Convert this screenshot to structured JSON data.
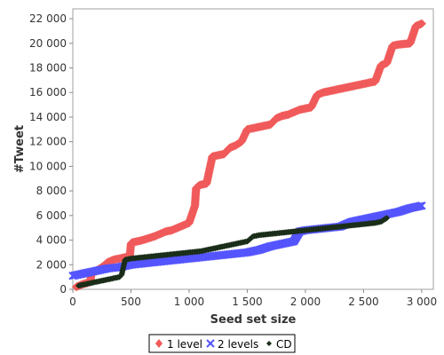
{
  "chart_data": {
    "type": "scatter",
    "xlabel": "Seed set size",
    "ylabel": "#Tweet",
    "xlim": [
      0,
      3100
    ],
    "ylim": [
      0,
      22800
    ],
    "x_ticks": [
      0,
      500,
      1000,
      1500,
      2000,
      2500,
      3000
    ],
    "x_tick_labels": [
      "0",
      "500",
      "1 000",
      "1 500",
      "2 000",
      "2 500",
      "3 000"
    ],
    "y_ticks": [
      0,
      2000,
      4000,
      6000,
      8000,
      10000,
      12000,
      14000,
      16000,
      18000,
      20000,
      22000
    ],
    "y_tick_labels": [
      "0",
      "2 000",
      "4 000",
      "6 000",
      "8 000",
      "10 000",
      "12 000",
      "14 000",
      "16 000",
      "18 000",
      "20 000",
      "22 000"
    ],
    "grid": false,
    "legend_position": "bottom-center",
    "series": [
      {
        "name": "1 level",
        "marker": "diamond",
        "color": "#f05a5a",
        "x": [
          30,
          80,
          150,
          160,
          200,
          250,
          300,
          350,
          400,
          450,
          490,
          500,
          510,
          600,
          700,
          800,
          850,
          900,
          950,
          1000,
          1050,
          1060,
          1080,
          1100,
          1150,
          1200,
          1250,
          1300,
          1350,
          1400,
          1450,
          1500,
          1550,
          1600,
          1650,
          1700,
          1750,
          1800,
          1850,
          1900,
          1950,
          2000,
          2050,
          2100,
          2150,
          2200,
          2250,
          2300,
          2350,
          2400,
          2500,
          2600,
          2650,
          2700,
          2750,
          2800,
          2900,
          2950,
          3000
        ],
        "y": [
          200,
          400,
          600,
          1300,
          1500,
          1800,
          2200,
          2400,
          2500,
          2600,
          2700,
          3700,
          3800,
          4000,
          4300,
          4700,
          4800,
          5000,
          5200,
          5400,
          6800,
          8200,
          8400,
          8500,
          8600,
          10800,
          10900,
          11000,
          11500,
          11700,
          12000,
          13000,
          13100,
          13200,
          13300,
          13400,
          13900,
          14100,
          14200,
          14400,
          14600,
          14700,
          14800,
          15800,
          16000,
          16100,
          16200,
          16300,
          16400,
          16500,
          16700,
          16900,
          18200,
          18400,
          19800,
          19900,
          20000,
          21400,
          21600
        ]
      },
      {
        "name": "2 levels",
        "marker": "x",
        "color": "#5555ff",
        "x": [
          0,
          100,
          200,
          300,
          400,
          500,
          600,
          700,
          800,
          900,
          1000,
          1100,
          1200,
          1300,
          1400,
          1500,
          1600,
          1700,
          1800,
          1900,
          1950,
          2000,
          2100,
          2200,
          2300,
          2350,
          2400,
          2500,
          2600,
          2700,
          2800,
          2900,
          3000
        ],
        "y": [
          1100,
          1300,
          1500,
          1700,
          1800,
          2000,
          2100,
          2200,
          2300,
          2400,
          2500,
          2600,
          2700,
          2800,
          2900,
          3000,
          3200,
          3500,
          3700,
          3900,
          4700,
          4800,
          4900,
          5000,
          5100,
          5300,
          5500,
          5700,
          5900,
          6100,
          6300,
          6600,
          6800
        ]
      },
      {
        "name": "CD",
        "marker": "diamond-small",
        "color": "#1a2e1a",
        "x": [
          50,
          100,
          150,
          200,
          250,
          300,
          350,
          400,
          420,
          450,
          500,
          600,
          700,
          800,
          900,
          1000,
          1100,
          1200,
          1300,
          1400,
          1500,
          1550,
          1600,
          1700,
          1800,
          1900,
          2000,
          2100,
          2200,
          2300,
          2400,
          2500,
          2600,
          2650,
          2700
        ],
        "y": [
          300,
          400,
          500,
          600,
          700,
          800,
          900,
          1000,
          1200,
          2400,
          2500,
          2600,
          2700,
          2800,
          2900,
          3000,
          3100,
          3300,
          3500,
          3700,
          3900,
          4300,
          4400,
          4500,
          4600,
          4700,
          4800,
          4900,
          5000,
          5100,
          5200,
          5300,
          5400,
          5500,
          5800
        ]
      }
    ]
  },
  "legend": {
    "items": [
      {
        "label": "1 level"
      },
      {
        "label": "2 levels"
      },
      {
        "label": "CD"
      }
    ]
  }
}
